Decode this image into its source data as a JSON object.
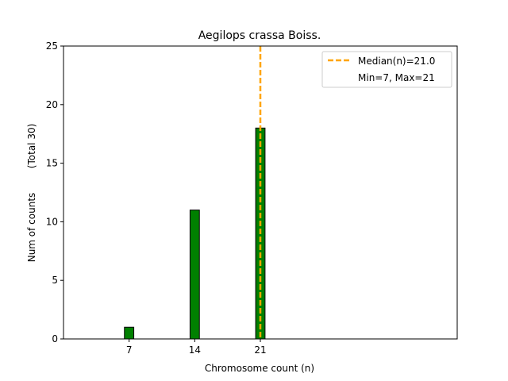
{
  "chart_data": {
    "type": "bar",
    "title": "Aegilops crassa Boiss.",
    "xlabel": "Chromosome count (n)",
    "ylabel": "Num of counts        (Total 30)",
    "x": [
      7,
      14,
      21
    ],
    "values": [
      1,
      11,
      18
    ],
    "xlim": [
      0,
      42
    ],
    "ylim": [
      0,
      25
    ],
    "xticks": [
      "7",
      "14",
      "21"
    ],
    "yticks": [
      "0",
      "5",
      "10",
      "15",
      "20",
      "25"
    ],
    "bar_color": "#008000",
    "bar_edge_color": "#000000",
    "grid": false,
    "median_line": {
      "x": 21.0,
      "color": "#FFA500",
      "style": "dashed"
    },
    "legend": {
      "placement": "top-right",
      "entries": [
        "Median(n)=21.0",
        "Min=7, Max=21"
      ]
    }
  }
}
